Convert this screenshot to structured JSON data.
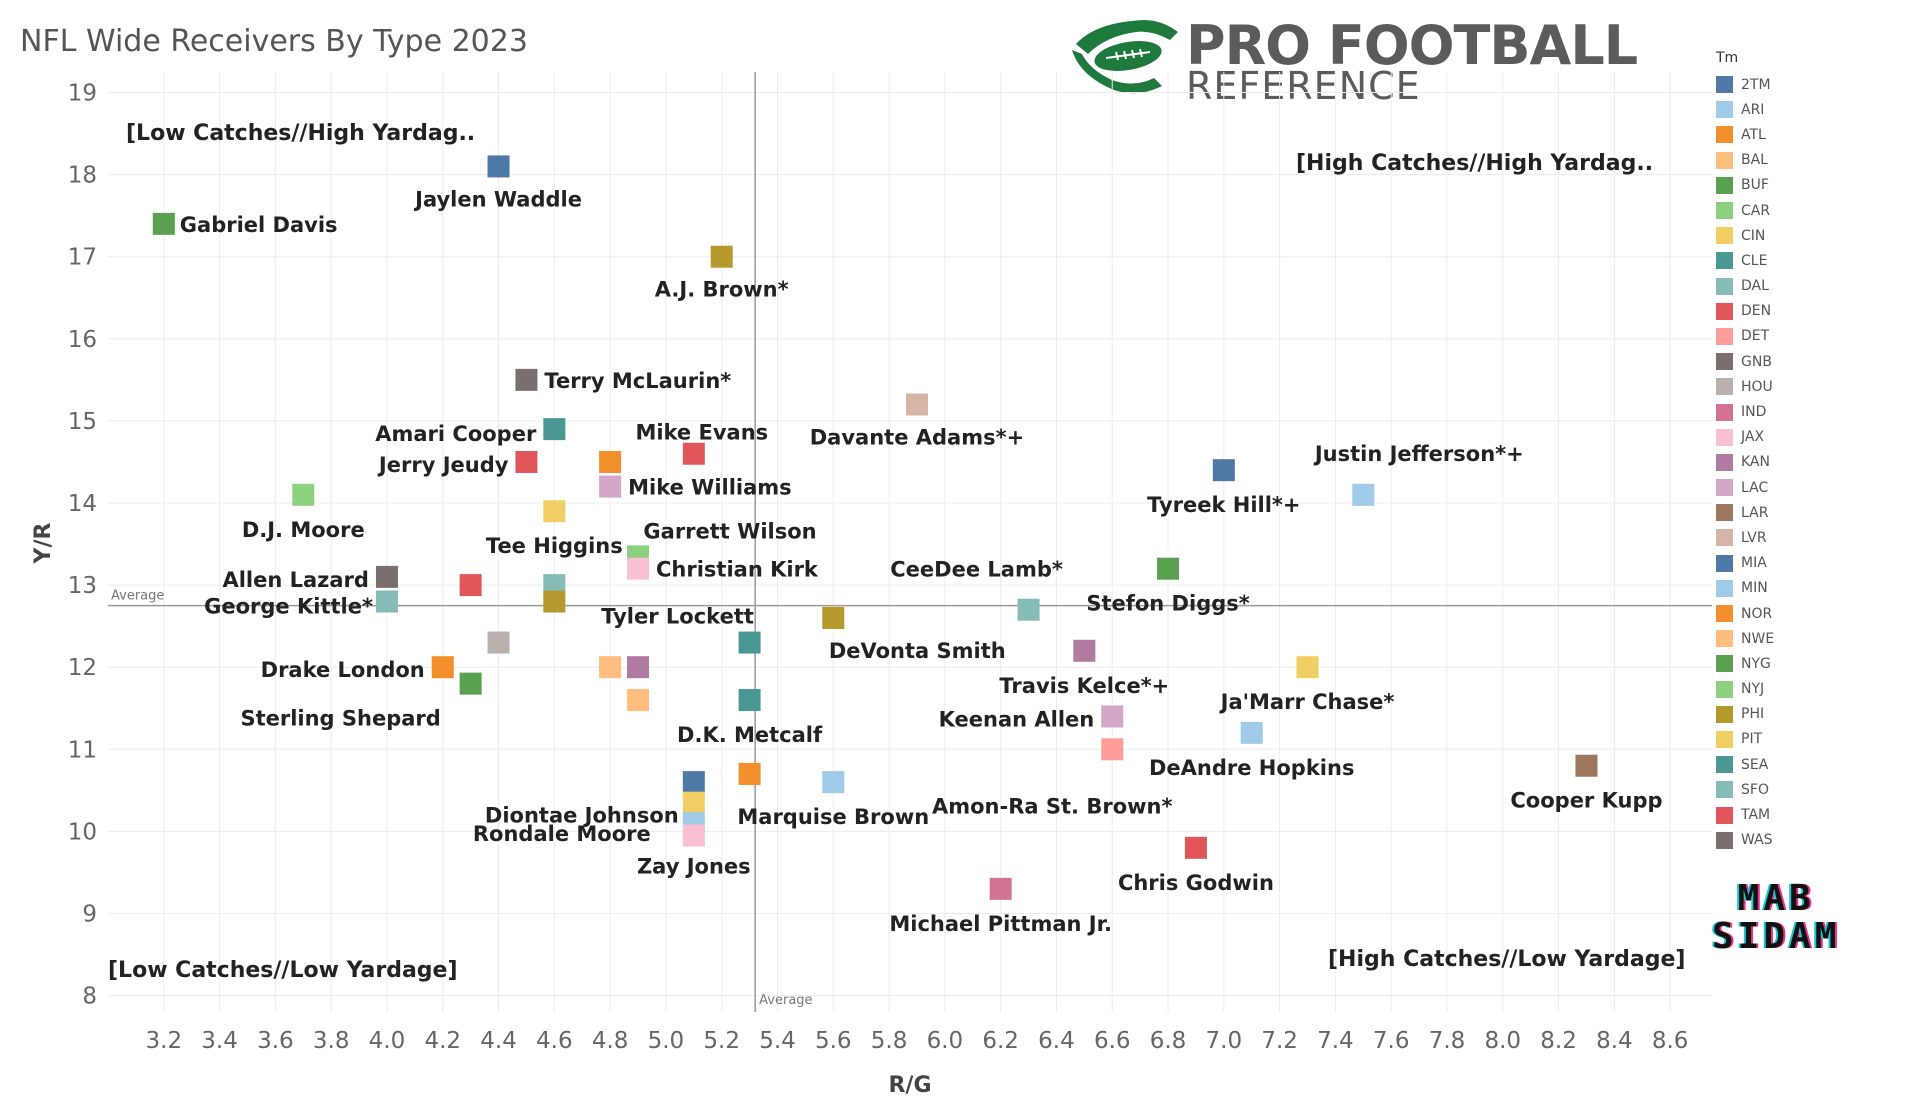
{
  "title": "NFL Wide Receivers By Type 2023",
  "logo": {
    "line1": "PRO FOOTBALL",
    "line2": "REFERENCE"
  },
  "watermark": {
    "line1": "MAB",
    "line2": "SIDAM"
  },
  "legend": {
    "title": "Tm",
    "teams": [
      {
        "name": "2TM",
        "color": "#4e79a7"
      },
      {
        "name": "ARI",
        "color": "#a0cbe8"
      },
      {
        "name": "ATL",
        "color": "#f28e2b"
      },
      {
        "name": "BAL",
        "color": "#ffbe7d"
      },
      {
        "name": "BUF",
        "color": "#59a14f"
      },
      {
        "name": "CAR",
        "color": "#8cd17d"
      },
      {
        "name": "CIN",
        "color": "#f1ce63"
      },
      {
        "name": "CLE",
        "color": "#499894"
      },
      {
        "name": "DAL",
        "color": "#86bcb6"
      },
      {
        "name": "DEN",
        "color": "#e15759"
      },
      {
        "name": "DET",
        "color": "#ff9d9a"
      },
      {
        "name": "GNB",
        "color": "#79706e"
      },
      {
        "name": "HOU",
        "color": "#bab0ac"
      },
      {
        "name": "IND",
        "color": "#d37295"
      },
      {
        "name": "JAX",
        "color": "#fabfd2"
      },
      {
        "name": "KAN",
        "color": "#b07aa1"
      },
      {
        "name": "LAC",
        "color": "#d4a6c8"
      },
      {
        "name": "LAR",
        "color": "#9d7660"
      },
      {
        "name": "LVR",
        "color": "#d7b5a6"
      },
      {
        "name": "MIA",
        "color": "#4e79a7"
      },
      {
        "name": "MIN",
        "color": "#a0cbe8"
      },
      {
        "name": "NOR",
        "color": "#f28e2b"
      },
      {
        "name": "NWE",
        "color": "#ffbe7d"
      },
      {
        "name": "NYG",
        "color": "#59a14f"
      },
      {
        "name": "NYJ",
        "color": "#8cd17d"
      },
      {
        "name": "PHI",
        "color": "#b6992d"
      },
      {
        "name": "PIT",
        "color": "#f1ce63"
      },
      {
        "name": "SEA",
        "color": "#499894"
      },
      {
        "name": "SFO",
        "color": "#86bcb6"
      },
      {
        "name": "TAM",
        "color": "#e15759"
      },
      {
        "name": "WAS",
        "color": "#79706e"
      }
    ]
  },
  "chart_data": {
    "type": "scatter",
    "xlabel": "R/G",
    "ylabel": "Y/R",
    "xlim": [
      3.0,
      8.75
    ],
    "ylim": [
      7.8,
      19.25
    ],
    "x_ticks": [
      3.2,
      3.4,
      3.6,
      3.8,
      4.0,
      4.2,
      4.4,
      4.6,
      4.8,
      5.0,
      5.2,
      5.4,
      5.6,
      5.8,
      6.0,
      6.2,
      6.4,
      6.6,
      6.8,
      7.0,
      7.2,
      7.4,
      7.6,
      7.8,
      8.0,
      8.2,
      8.4,
      8.6
    ],
    "y_ticks": [
      8,
      9,
      10,
      11,
      12,
      13,
      14,
      15,
      16,
      17,
      18,
      19
    ],
    "grid": true,
    "average_lines": {
      "x": 5.32,
      "y": 12.75,
      "label": "Average"
    },
    "quadrant_labels": {
      "top_left": "[Low Catches//High Yardag..",
      "top_right": "[High Catches//High Yardag..",
      "bottom_left": "[Low Catches//Low Yardage]",
      "bottom_right": "[High Catches//Low Yardage]"
    },
    "points": [
      {
        "x": 4.4,
        "y": 18.1,
        "team": "MIA",
        "label": "Jaylen Waddle"
      },
      {
        "x": 3.2,
        "y": 17.4,
        "team": "BUF",
        "label": "Gabriel Davis"
      },
      {
        "x": 5.2,
        "y": 17.0,
        "team": "PHI",
        "label": "A.J. Brown*"
      },
      {
        "x": 4.5,
        "y": 15.5,
        "team": "WAS",
        "label": "Terry McLaurin*"
      },
      {
        "x": 5.9,
        "y": 15.2,
        "team": "LVR",
        "label": "Davante Adams*+"
      },
      {
        "x": 4.6,
        "y": 14.9,
        "team": "CLE",
        "label": "Amari Cooper"
      },
      {
        "x": 5.1,
        "y": 14.6,
        "team": "DEN",
        "label": "Mike Evans"
      },
      {
        "x": 4.5,
        "y": 14.5,
        "team": "DEN",
        "label": "Jerry Jeudy"
      },
      {
        "x": 4.8,
        "y": 14.5,
        "team": "NOR",
        "label": ""
      },
      {
        "x": 7.0,
        "y": 14.4,
        "team": "MIA",
        "label": "Tyreek Hill*+"
      },
      {
        "x": 4.8,
        "y": 14.2,
        "team": "LAC",
        "label": "Mike Williams"
      },
      {
        "x": 3.7,
        "y": 14.1,
        "team": "CAR",
        "label": "D.J. Moore"
      },
      {
        "x": 7.5,
        "y": 14.1,
        "team": "MIN",
        "label": "Justin Jefferson*+"
      },
      {
        "x": 4.6,
        "y": 13.9,
        "team": "CIN",
        "label": "Tee Higgins"
      },
      {
        "x": 4.9,
        "y": 13.35,
        "team": "NYJ",
        "label": "Garrett Wilson"
      },
      {
        "x": 4.9,
        "y": 13.2,
        "team": "JAX",
        "label": "Christian Kirk"
      },
      {
        "x": 6.8,
        "y": 13.2,
        "team": "BUF",
        "label": "Stefon Diggs*"
      },
      {
        "x": 4.0,
        "y": 13.1,
        "team": "GNB",
        "label": "Allen Lazard"
      },
      {
        "x": 4.3,
        "y": 13.0,
        "team": "TAM",
        "label": ""
      },
      {
        "x": 4.6,
        "y": 13.0,
        "team": "DAL",
        "label": ""
      },
      {
        "x": 4.0,
        "y": 12.8,
        "team": "SFO",
        "label": "George Kittle*"
      },
      {
        "x": 4.6,
        "y": 12.8,
        "team": "PHI",
        "label": ""
      },
      {
        "x": 6.3,
        "y": 12.7,
        "team": "DAL",
        "label": "CeeDee Lamb*"
      },
      {
        "x": 5.6,
        "y": 12.6,
        "team": "PHI",
        "label": "DeVonta Smith"
      },
      {
        "x": 5.3,
        "y": 12.3,
        "team": "SEA",
        "label": "Tyler Lockett"
      },
      {
        "x": 4.4,
        "y": 12.3,
        "team": "HOU",
        "label": ""
      },
      {
        "x": 6.5,
        "y": 12.2,
        "team": "KAN",
        "label": "Travis Kelce*+"
      },
      {
        "x": 4.2,
        "y": 12.0,
        "team": "ATL",
        "label": "Drake London"
      },
      {
        "x": 4.8,
        "y": 12.0,
        "team": "NWE",
        "label": ""
      },
      {
        "x": 4.9,
        "y": 12.0,
        "team": "KAN",
        "label": ""
      },
      {
        "x": 7.3,
        "y": 12.0,
        "team": "CIN",
        "label": "Ja'Marr Chase*"
      },
      {
        "x": 4.3,
        "y": 11.8,
        "team": "NYG",
        "label": "Sterling Shepard"
      },
      {
        "x": 4.9,
        "y": 11.6,
        "team": "BAL",
        "label": ""
      },
      {
        "x": 5.3,
        "y": 11.6,
        "team": "SEA",
        "label": "D.K. Metcalf"
      },
      {
        "x": 6.6,
        "y": 11.4,
        "team": "LAC",
        "label": "Keenan Allen"
      },
      {
        "x": 7.1,
        "y": 11.2,
        "team": "ARI",
        "label": "DeAndre Hopkins"
      },
      {
        "x": 6.6,
        "y": 11.0,
        "team": "DET",
        "label": "Amon-Ra St. Brown*"
      },
      {
        "x": 8.3,
        "y": 10.8,
        "team": "LAR",
        "label": "Cooper Kupp"
      },
      {
        "x": 5.3,
        "y": 10.7,
        "team": "NOR",
        "label": ""
      },
      {
        "x": 5.1,
        "y": 10.6,
        "team": "2TM",
        "label": ""
      },
      {
        "x": 5.6,
        "y": 10.6,
        "team": "ARI",
        "label": "Marquise Brown"
      },
      {
        "x": 5.1,
        "y": 10.35,
        "team": "PIT",
        "label": "Diontae Johnson"
      },
      {
        "x": 5.1,
        "y": 10.1,
        "team": "ARI",
        "label": "Rondale Moore"
      },
      {
        "x": 5.1,
        "y": 9.95,
        "team": "JAX",
        "label": "Zay Jones"
      },
      {
        "x": 6.9,
        "y": 9.8,
        "team": "TAM",
        "label": "Chris Godwin"
      },
      {
        "x": 6.2,
        "y": 9.3,
        "team": "IND",
        "label": "Michael Pittman Jr."
      }
    ]
  }
}
